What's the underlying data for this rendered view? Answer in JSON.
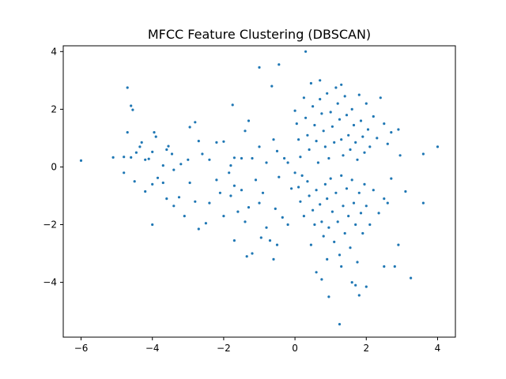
{
  "chart_data": {
    "type": "scatter",
    "title": "MFCC Feature Clustering (DBSCAN)",
    "xlabel": "",
    "ylabel": "",
    "xlim": [
      -6.5,
      4.5
    ],
    "ylim": [
      -5.9,
      4.2
    ],
    "xticks": [
      -6,
      -4,
      -2,
      0,
      2,
      4
    ],
    "yticks": [
      -4,
      -2,
      0,
      2,
      4
    ],
    "grid": false,
    "colors": {
      "point": "#1f77b4",
      "axes": "#000000",
      "background": "#ffffff"
    },
    "series": [
      {
        "points": [
          [
            -6.0,
            0.22
          ],
          [
            -5.1,
            0.33
          ],
          [
            -4.7,
            2.75
          ],
          [
            -4.6,
            2.12
          ],
          [
            -4.55,
            1.98
          ],
          [
            -4.7,
            1.2
          ],
          [
            -4.8,
            0.35
          ],
          [
            -4.6,
            0.33
          ],
          [
            -4.45,
            0.5
          ],
          [
            -4.35,
            0.7
          ],
          [
            -4.3,
            0.85
          ],
          [
            -4.2,
            0.25
          ],
          [
            -4.1,
            0.28
          ],
          [
            -4.0,
            0.52
          ],
          [
            -3.95,
            1.2
          ],
          [
            -3.9,
            1.05
          ],
          [
            -3.7,
            0.05
          ],
          [
            -3.6,
            0.6
          ],
          [
            -3.55,
            0.72
          ],
          [
            -3.45,
            0.45
          ],
          [
            -3.4,
            -0.1
          ],
          [
            -3.2,
            0.1
          ],
          [
            -3.0,
            0.25
          ],
          [
            -2.95,
            1.38
          ],
          [
            -2.8,
            1.55
          ],
          [
            -2.7,
            0.9
          ],
          [
            -2.6,
            0.45
          ],
          [
            -2.4,
            0.25
          ],
          [
            -2.2,
            0.85
          ],
          [
            -2.0,
            0.88
          ],
          [
            -1.8,
            0.05
          ],
          [
            -1.7,
            0.32
          ],
          [
            -1.5,
            0.3
          ],
          [
            -1.4,
            1.25
          ],
          [
            -1.3,
            1.6
          ],
          [
            -1.2,
            0.3
          ],
          [
            -1.0,
            0.7
          ],
          [
            -0.8,
            0.15
          ],
          [
            -0.6,
            0.95
          ],
          [
            -0.5,
            0.55
          ],
          [
            -0.3,
            0.3
          ],
          [
            -0.2,
            0.15
          ],
          [
            -4.8,
            -0.2
          ],
          [
            -4.5,
            -0.5
          ],
          [
            -4.2,
            -0.85
          ],
          [
            -4.0,
            -0.6
          ],
          [
            -3.85,
            -0.38
          ],
          [
            -3.7,
            -0.55
          ],
          [
            -3.6,
            -1.1
          ],
          [
            -3.4,
            -1.35
          ],
          [
            -3.25,
            -1.05
          ],
          [
            -3.1,
            -1.7
          ],
          [
            -2.95,
            -0.55
          ],
          [
            -2.8,
            -1.2
          ],
          [
            -2.7,
            -2.15
          ],
          [
            -2.5,
            -1.95
          ],
          [
            -2.4,
            -1.25
          ],
          [
            -2.2,
            -0.45
          ],
          [
            -2.1,
            -0.9
          ],
          [
            -2.0,
            -1.7
          ],
          [
            -1.85,
            -0.2
          ],
          [
            -1.8,
            -1.0
          ],
          [
            -1.7,
            -0.65
          ],
          [
            -1.6,
            -1.55
          ],
          [
            -1.5,
            -0.8
          ],
          [
            -1.4,
            -1.9
          ],
          [
            -1.3,
            -1.4
          ],
          [
            -1.1,
            -0.45
          ],
          [
            -1.0,
            -1.25
          ],
          [
            -0.9,
            -0.9
          ],
          [
            -0.8,
            -2.1
          ],
          [
            -0.7,
            -2.55
          ],
          [
            -0.55,
            -1.45
          ],
          [
            -0.45,
            -0.35
          ],
          [
            -0.35,
            -1.75
          ],
          [
            -0.2,
            -2.0
          ],
          [
            -0.1,
            -0.75
          ],
          [
            -4.0,
            -2.0
          ],
          [
            -1.7,
            -2.55
          ],
          [
            -1.35,
            -3.1
          ],
          [
            -1.2,
            -3.0
          ],
          [
            -0.95,
            -2.45
          ],
          [
            -0.6,
            -3.2
          ],
          [
            -0.5,
            -2.7
          ],
          [
            -1.0,
            3.45
          ],
          [
            -0.45,
            3.55
          ],
          [
            -0.65,
            2.8
          ],
          [
            -1.75,
            2.15
          ],
          [
            0.0,
            1.95
          ],
          [
            0.05,
            1.5
          ],
          [
            0.1,
            0.95
          ],
          [
            0.15,
            0.35
          ],
          [
            0.2,
            -0.3
          ],
          [
            0.25,
            2.4
          ],
          [
            0.3,
            1.7
          ],
          [
            0.35,
            1.1
          ],
          [
            0.4,
            0.6
          ],
          [
            0.45,
            2.9
          ],
          [
            0.5,
            2.1
          ],
          [
            0.55,
            1.45
          ],
          [
            0.6,
            0.9
          ],
          [
            0.65,
            0.15
          ],
          [
            0.7,
            2.35
          ],
          [
            0.75,
            1.85
          ],
          [
            0.8,
            1.25
          ],
          [
            0.85,
            0.7
          ],
          [
            0.9,
            2.55
          ],
          [
            0.95,
            0.3
          ],
          [
            1.0,
            1.9
          ],
          [
            1.05,
            1.4
          ],
          [
            1.1,
            0.85
          ],
          [
            1.15,
            2.75
          ],
          [
            1.2,
            2.2
          ],
          [
            1.25,
            1.65
          ],
          [
            1.3,
            0.95
          ],
          [
            1.35,
            0.4
          ],
          [
            1.4,
            2.45
          ],
          [
            1.45,
            1.8
          ],
          [
            1.5,
            1.1
          ],
          [
            1.55,
            0.6
          ],
          [
            1.6,
            2.0
          ],
          [
            1.65,
            1.45
          ],
          [
            1.7,
            0.85
          ],
          [
            1.75,
            0.25
          ],
          [
            1.8,
            2.5
          ],
          [
            1.85,
            1.6
          ],
          [
            1.9,
            1.05
          ],
          [
            1.95,
            0.5
          ],
          [
            2.0,
            2.2
          ],
          [
            2.05,
            1.3
          ],
          [
            2.1,
            0.7
          ],
          [
            2.2,
            1.75
          ],
          [
            2.3,
            1.0
          ],
          [
            2.4,
            2.4
          ],
          [
            2.5,
            1.5
          ],
          [
            2.6,
            0.8
          ],
          [
            2.7,
            1.2
          ],
          [
            2.9,
            1.3
          ],
          [
            2.95,
            0.4
          ],
          [
            0.3,
            4.0
          ],
          [
            0.7,
            3.0
          ],
          [
            1.3,
            2.85
          ],
          [
            3.6,
            0.45
          ],
          [
            4.0,
            0.7
          ],
          [
            0.0,
            -0.2
          ],
          [
            0.1,
            -0.7
          ],
          [
            0.15,
            -1.2
          ],
          [
            0.25,
            -1.7
          ],
          [
            0.35,
            -0.5
          ],
          [
            0.4,
            -1.0
          ],
          [
            0.5,
            -1.5
          ],
          [
            0.55,
            -2.0
          ],
          [
            0.6,
            -0.8
          ],
          [
            0.7,
            -1.3
          ],
          [
            0.75,
            -1.9
          ],
          [
            0.8,
            -2.4
          ],
          [
            0.85,
            -0.6
          ],
          [
            0.9,
            -1.1
          ],
          [
            0.95,
            -2.1
          ],
          [
            1.0,
            -0.4
          ],
          [
            1.05,
            -1.55
          ],
          [
            1.1,
            -2.6
          ],
          [
            1.15,
            -0.9
          ],
          [
            1.2,
            -1.9
          ],
          [
            1.25,
            -3.05
          ],
          [
            1.3,
            -0.3
          ],
          [
            1.35,
            -1.35
          ],
          [
            1.4,
            -2.3
          ],
          [
            1.45,
            -0.75
          ],
          [
            1.5,
            -1.7
          ],
          [
            1.55,
            -2.8
          ],
          [
            1.6,
            -0.45
          ],
          [
            1.65,
            -1.25
          ],
          [
            1.7,
            -2.0
          ],
          [
            1.75,
            -3.3
          ],
          [
            1.8,
            -0.9
          ],
          [
            1.85,
            -1.6
          ],
          [
            1.9,
            -2.3
          ],
          [
            1.95,
            -0.6
          ],
          [
            2.0,
            -1.35
          ],
          [
            2.1,
            -2.0
          ],
          [
            2.2,
            -0.8
          ],
          [
            2.35,
            -1.6
          ],
          [
            2.5,
            -1.1
          ],
          [
            2.6,
            -1.25
          ],
          [
            2.7,
            -0.4
          ],
          [
            2.9,
            -2.7
          ],
          [
            3.1,
            -0.85
          ],
          [
            3.6,
            -1.25
          ],
          [
            2.5,
            -3.45
          ],
          [
            2.8,
            -3.45
          ],
          [
            3.25,
            -3.85
          ],
          [
            0.6,
            -3.65
          ],
          [
            0.75,
            -3.9
          ],
          [
            0.95,
            -4.5
          ],
          [
            1.3,
            -3.45
          ],
          [
            1.6,
            -4.0
          ],
          [
            1.7,
            -4.1
          ],
          [
            1.8,
            -4.45
          ],
          [
            2.0,
            -4.15
          ],
          [
            1.25,
            -5.45
          ],
          [
            0.45,
            -2.7
          ],
          [
            0.9,
            -3.2
          ]
        ]
      }
    ]
  }
}
